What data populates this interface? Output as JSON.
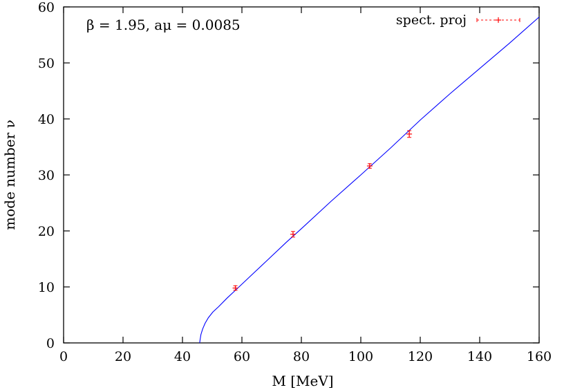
{
  "chart_data": {
    "type": "scatter",
    "title": "",
    "annotation": "β = 1.95, aμ = 0.0085",
    "xlabel": "M [MeV]",
    "ylabel": "mode number ν",
    "xlim": [
      0,
      160
    ],
    "ylim": [
      0,
      60
    ],
    "xticks": [
      0,
      20,
      40,
      60,
      80,
      100,
      120,
      140,
      160
    ],
    "yticks": [
      0,
      10,
      20,
      30,
      40,
      50,
      60
    ],
    "grid": false,
    "legend": {
      "position": "top-right",
      "entries": [
        "spect. proj"
      ]
    },
    "colors": {
      "points": "#ff0000",
      "fit": "#0000ff",
      "axes": "#000000"
    },
    "series": [
      {
        "name": "spect. proj",
        "type": "scatter-errorbar",
        "x": [
          57.8,
          77.2,
          103.0,
          116.3
        ],
        "y": [
          9.8,
          19.4,
          31.6,
          37.3
        ],
        "yerr": [
          0.4,
          0.5,
          0.4,
          0.6
        ]
      },
      {
        "type": "line",
        "x": [
          45.8,
          45.9,
          46.2,
          46.8,
          47.6,
          48.7,
          50.2,
          52.2,
          55.0,
          58.0,
          62.0,
          68.0,
          75.0,
          80.0,
          90.0,
          100.0,
          110.0,
          120.0,
          130.0,
          140.0,
          150.0,
          160.0
        ],
        "y": [
          0.0,
          0.5,
          1.5,
          2.5,
          3.5,
          4.5,
          5.5,
          6.5,
          8.0,
          9.5,
          11.5,
          14.5,
          18.0,
          20.4,
          25.3,
          30.0,
          34.8,
          39.8,
          44.5,
          49.0,
          53.5,
          58.2
        ]
      }
    ]
  }
}
